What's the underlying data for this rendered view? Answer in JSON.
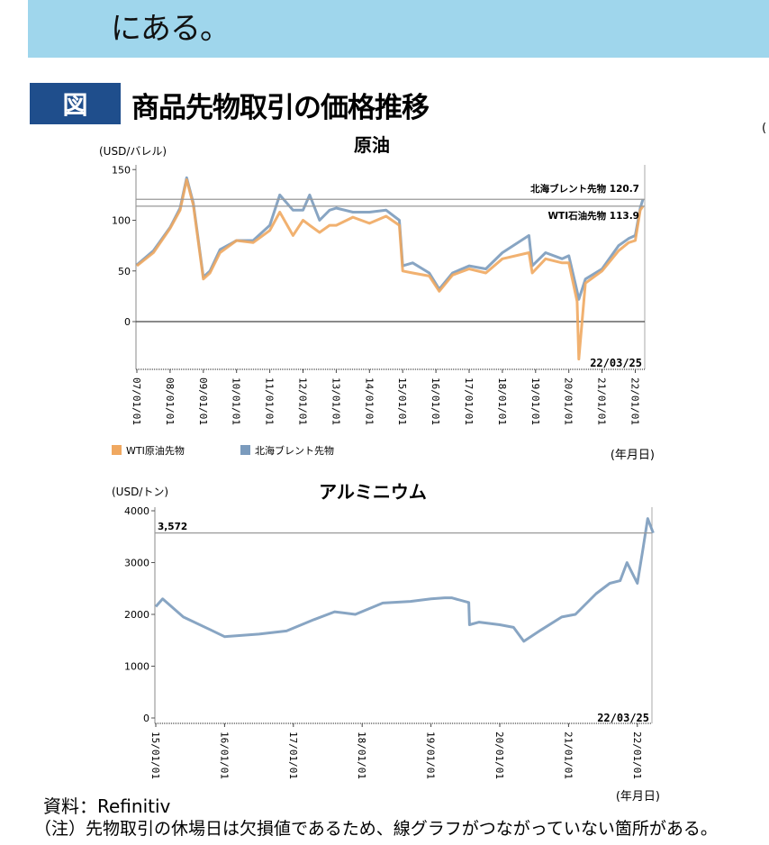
{
  "banner": {
    "text": "にある。",
    "color": "#9fd6ec"
  },
  "figure": {
    "badge": "図",
    "title": "商品先物取引の価格推移",
    "right_clip": "(",
    "badge_color": "#1f4e8c"
  },
  "footer": {
    "source": "資料：Refinitiv",
    "note": "（注）先物取引の休場日は欠損値であるため、線グラフがつながっていない箇所がある。"
  },
  "chart_data": [
    {
      "type": "line",
      "title": "原油",
      "ylabel": "(USD/バレル)",
      "xlabel": "(年月日)",
      "ylim": [
        -48,
        155
      ],
      "yticks": [
        0,
        50,
        100,
        150
      ],
      "x_tick_labels": [
        "07/01/01",
        "08/01/01",
        "09/01/01",
        "10/01/01",
        "11/01/01",
        "12/01/01",
        "13/01/01",
        "14/01/01",
        "15/01/01",
        "16/01/01",
        "17/01/01",
        "18/01/01",
        "19/01/01",
        "20/01/01",
        "21/01/01",
        "22/01/01"
      ],
      "end_date_label": "22/03/25",
      "reference_lines": [
        {
          "label": "北海ブレント先物",
          "value": 120.7,
          "display": "北海ブレント先物  120.7"
        },
        {
          "label": "WTI石油先物",
          "value": 113.9,
          "display": "WTI石油先物  113.9"
        }
      ],
      "legend": [
        {
          "name": "WTI原油先物",
          "color": "#f0a860"
        },
        {
          "name": "北海ブレント先物",
          "color": "#7b9bbd"
        }
      ],
      "x": [
        2007.0,
        2007.5,
        2008.0,
        2008.3,
        2008.5,
        2008.7,
        2009.0,
        2009.2,
        2009.5,
        2010.0,
        2010.5,
        2011.0,
        2011.3,
        2011.7,
        2012.0,
        2012.2,
        2012.5,
        2012.8,
        2013.0,
        2013.5,
        2014.0,
        2014.5,
        2014.9,
        2015.0,
        2015.3,
        2015.8,
        2016.1,
        2016.5,
        2017.0,
        2017.5,
        2018.0,
        2018.8,
        2018.9,
        2019.3,
        2019.8,
        2020.0,
        2020.25,
        2020.3,
        2020.5,
        2021.0,
        2021.5,
        2021.8,
        2022.0,
        2022.15,
        2022.23
      ],
      "series": [
        {
          "name": "WTI原油先物",
          "values": [
            55,
            68,
            92,
            110,
            140,
            115,
            42,
            48,
            68,
            80,
            78,
            90,
            108,
            85,
            100,
            95,
            88,
            95,
            95,
            103,
            97,
            104,
            95,
            50,
            48,
            45,
            30,
            46,
            52,
            48,
            62,
            68,
            48,
            62,
            58,
            58,
            20,
            -37,
            38,
            50,
            70,
            78,
            80,
            110,
            113.9
          ]
        },
        {
          "name": "北海ブレント先物",
          "values": [
            56,
            70,
            93,
            112,
            142,
            117,
            44,
            50,
            71,
            80,
            80,
            95,
            125,
            110,
            110,
            125,
            100,
            110,
            112,
            108,
            108,
            110,
            100,
            55,
            58,
            48,
            32,
            48,
            55,
            52,
            68,
            85,
            55,
            68,
            62,
            65,
            30,
            22,
            42,
            52,
            75,
            82,
            85,
            112,
            120.7
          ]
        }
      ]
    },
    {
      "type": "line",
      "title": "アルミニウム",
      "ylabel": "(USD/トン)",
      "xlabel": "(年月日)",
      "ylim": [
        0,
        4100
      ],
      "yticks": [
        0,
        1000,
        2000,
        3000,
        4000
      ],
      "x_tick_labels": [
        "15/01/01",
        "16/01/01",
        "17/01/01",
        "18/01/01",
        "19/01/01",
        "20/01/01",
        "21/01/01",
        "22/01/01"
      ],
      "end_date_label": "22/03/25",
      "reference_lines": [
        {
          "label": "3,572",
          "value": 3572
        }
      ],
      "legend": [],
      "x": [
        2015.0,
        2015.1,
        2015.4,
        2015.8,
        2016.0,
        2016.5,
        2016.9,
        2017.3,
        2017.6,
        2017.9,
        2018.3,
        2018.7,
        2019.0,
        2019.2,
        2019.3,
        2019.55,
        2019.56,
        2019.7,
        2020.0,
        2020.2,
        2020.35,
        2020.6,
        2020.9,
        2021.1,
        2021.4,
        2021.6,
        2021.75,
        2021.85,
        2022.0,
        2022.08,
        2022.15,
        2022.23
      ],
      "values": [
        2150,
        2300,
        1950,
        1700,
        1570,
        1620,
        1680,
        1900,
        2050,
        2000,
        2220,
        2250,
        2300,
        2320,
        2320,
        2230,
        1800,
        1850,
        1800,
        1750,
        1480,
        1700,
        1950,
        2000,
        2400,
        2600,
        2650,
        3000,
        2600,
        3250,
        3850,
        3572
      ]
    }
  ]
}
